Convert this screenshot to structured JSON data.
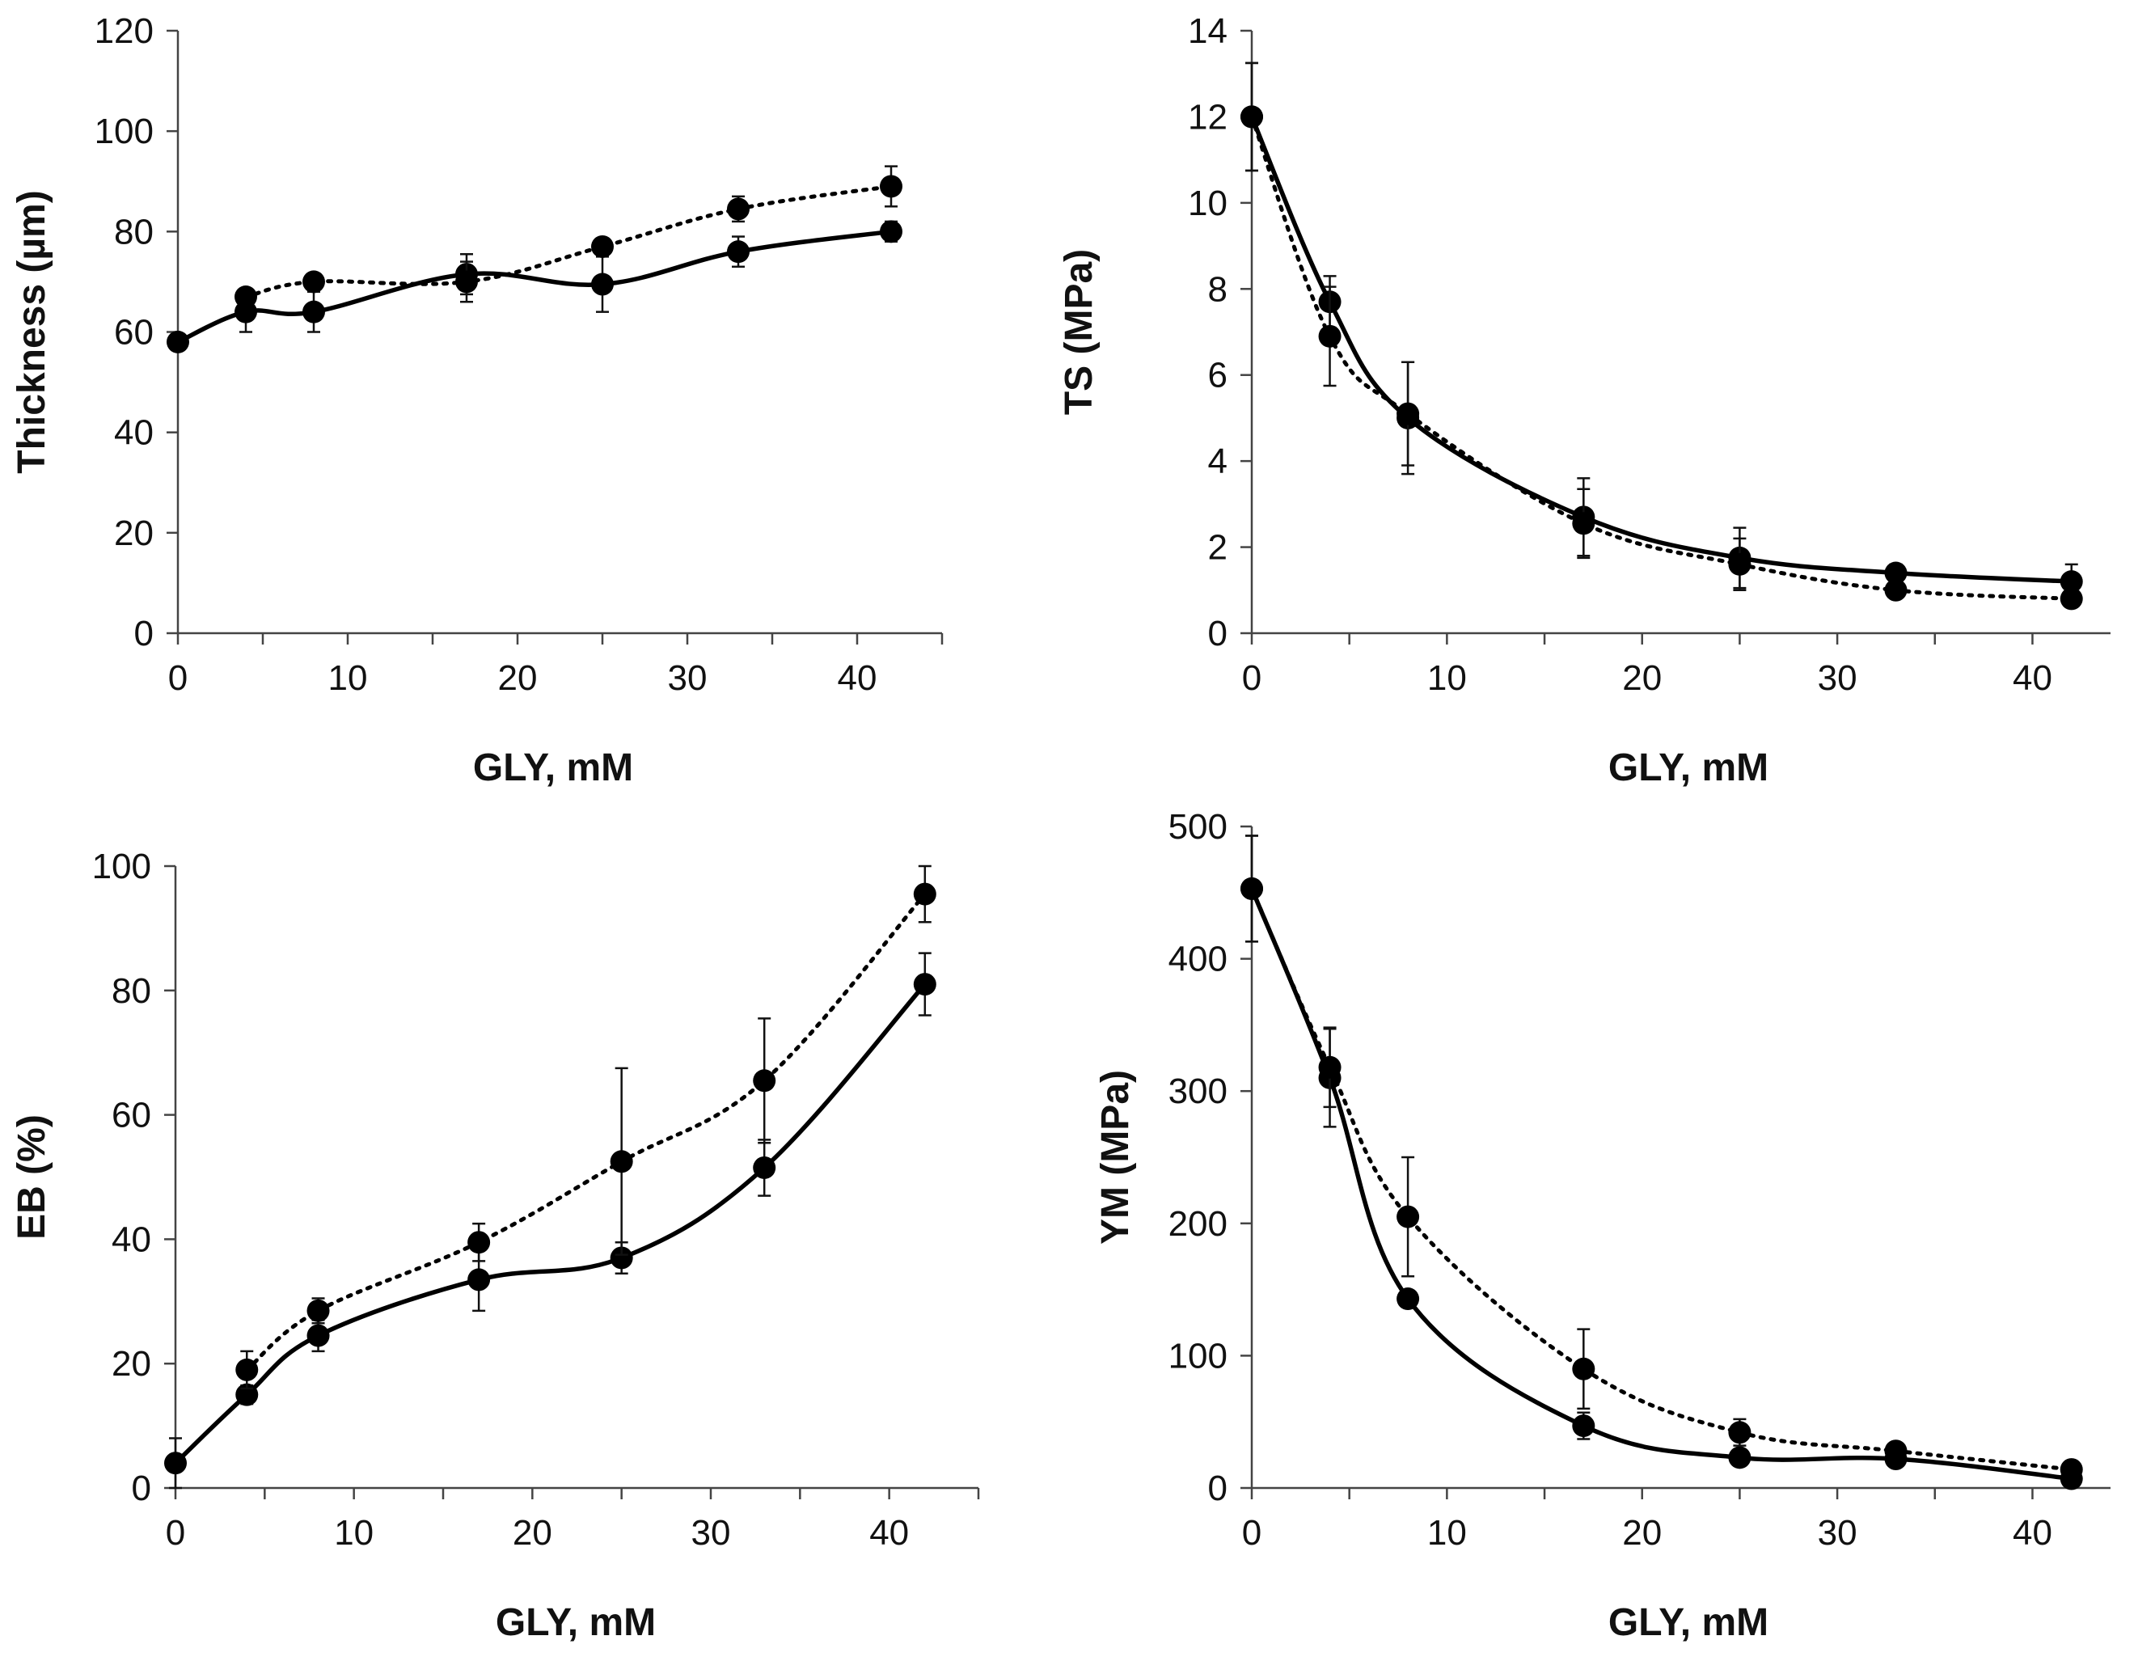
{
  "chart_data": [
    {
      "type": "line",
      "xlabel": "GLY, mM",
      "ylabel": "Thickness (µm)",
      "xlim": [
        0,
        45
      ],
      "ylim": [
        0,
        120
      ],
      "xticks": [
        0,
        10,
        20,
        30,
        40
      ],
      "yticks": [
        0,
        20,
        40,
        60,
        80,
        100,
        120
      ],
      "grid": false,
      "series": [
        {
          "name": "solid",
          "style": "solid",
          "x": [
            0,
            4,
            8,
            17,
            25,
            33,
            42
          ],
          "values": [
            58,
            64,
            64,
            71.5,
            69.5,
            76,
            80
          ],
          "errors": [
            0,
            4,
            4,
            4,
            5.5,
            3,
            2
          ]
        },
        {
          "name": "dotted",
          "style": "dotted",
          "x": [
            4,
            8,
            17,
            25,
            33,
            42
          ],
          "values": [
            67,
            70,
            70,
            77,
            84.5,
            89
          ],
          "errors": [
            1,
            1,
            4,
            1,
            2.5,
            4
          ]
        }
      ]
    },
    {
      "type": "line",
      "xlabel": "GLY, mM",
      "ylabel": "TS (MPa)",
      "xlim": [
        0,
        44
      ],
      "ylim": [
        0,
        14
      ],
      "xticks": [
        0,
        10,
        20,
        30,
        40
      ],
      "yticks": [
        0,
        2,
        4,
        6,
        8,
        10,
        12,
        14
      ],
      "grid": false,
      "series": [
        {
          "name": "solid",
          "style": "solid",
          "x": [
            0,
            4,
            8,
            17,
            25,
            33,
            42
          ],
          "values": [
            12,
            7.7,
            5.0,
            2.7,
            1.75,
            1.4,
            1.2
          ],
          "errors": [
            1.25,
            0.6,
            1.3,
            0.9,
            0.7,
            0.2,
            0.4
          ]
        },
        {
          "name": "dotted",
          "style": "dotted",
          "x": [
            0,
            4,
            8,
            17,
            25,
            33,
            42
          ],
          "values": [
            12,
            6.9,
            5.1,
            2.55,
            1.6,
            1.0,
            0.8
          ],
          "errors": [
            1.25,
            1.15,
            1.2,
            0.8,
            0.6,
            0.1,
            0.1
          ]
        }
      ]
    },
    {
      "type": "line",
      "xlabel": "GLY, mM",
      "ylabel": "EB (%)",
      "xlim": [
        0,
        45
      ],
      "ylim": [
        0,
        100
      ],
      "xticks": [
        0,
        10,
        20,
        30,
        40
      ],
      "yticks": [
        0,
        20,
        40,
        60,
        80,
        100
      ],
      "grid": false,
      "series": [
        {
          "name": "solid",
          "style": "solid",
          "x": [
            0,
            4,
            8,
            17,
            25,
            33,
            42
          ],
          "values": [
            4,
            15,
            24.5,
            33.5,
            37,
            51.5,
            81
          ],
          "errors": [
            4,
            1.5,
            2.5,
            5,
            2.5,
            4.5,
            5
          ]
        },
        {
          "name": "dotted",
          "style": "dotted",
          "x": [
            4,
            8,
            17,
            25,
            33,
            42
          ],
          "values": [
            19,
            28.5,
            39.5,
            52.5,
            65.5,
            95.5
          ],
          "errors": [
            3,
            2,
            3,
            15,
            10,
            4.5
          ]
        }
      ]
    },
    {
      "type": "line",
      "xlabel": "GLY, mM",
      "ylabel": "YM (MPa)",
      "xlim": [
        0,
        44
      ],
      "ylim": [
        0,
        500
      ],
      "xticks": [
        0,
        10,
        20,
        30,
        40
      ],
      "yticks": [
        0,
        100,
        200,
        300,
        400,
        500
      ],
      "grid": false,
      "series": [
        {
          "name": "solid",
          "style": "solid",
          "x": [
            0,
            4,
            8,
            17,
            25,
            33,
            42
          ],
          "values": [
            453,
            310,
            143,
            47,
            23,
            22,
            7
          ],
          "errors": [
            40,
            37,
            3,
            10,
            3,
            3,
            2
          ]
        },
        {
          "name": "dotted",
          "style": "dotted",
          "x": [
            0,
            4,
            8,
            17,
            25,
            33,
            42
          ],
          "values": [
            453,
            318,
            205,
            90,
            42,
            28,
            14
          ],
          "errors": [
            40,
            30,
            45,
            30,
            10,
            3,
            2
          ]
        }
      ]
    }
  ]
}
